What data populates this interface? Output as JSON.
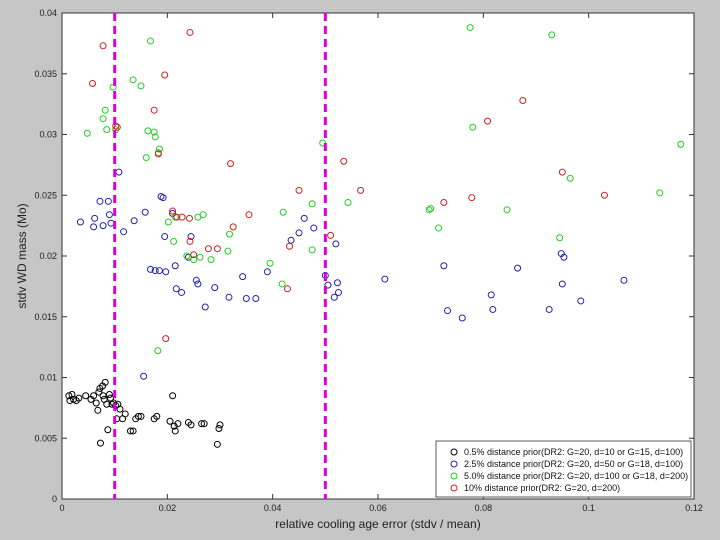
{
  "chart_data": {
    "type": "scatter",
    "xlabel": "relative cooling age error (stdv / mean)",
    "ylabel": "stdv WD mass (Mo)",
    "xlim": [
      0,
      0.12
    ],
    "ylim": [
      0,
      0.04
    ],
    "xticks": [
      "0",
      "0.02",
      "0.04",
      "0.06",
      "0.08",
      "0.1",
      "0.12"
    ],
    "yticks": [
      "0",
      "0.005",
      "0.01",
      "0.015",
      "0.02",
      "0.025",
      "0.03",
      "0.035",
      "0.04"
    ],
    "vlines": [
      0.01,
      0.05
    ],
    "vline_color": "#dd00dd",
    "legend_position": "bottom-right",
    "series": [
      {
        "name": "0.5% distance prior(DR2: G=20, d=10 or G=15, d=100)",
        "color": "#000000",
        "points": [
          [
            0.0013,
            0.0085
          ],
          [
            0.0015,
            0.0081
          ],
          [
            0.0019,
            0.0086
          ],
          [
            0.0022,
            0.0082
          ],
          [
            0.0027,
            0.0081
          ],
          [
            0.0032,
            0.0083
          ],
          [
            0.0045,
            0.0085
          ],
          [
            0.0055,
            0.0082
          ],
          [
            0.006,
            0.0085
          ],
          [
            0.0065,
            0.0079
          ],
          [
            0.0068,
            0.0073
          ],
          [
            0.007,
            0.0088
          ],
          [
            0.0072,
            0.0091
          ],
          [
            0.0073,
            0.0046
          ],
          [
            0.0077,
            0.0093
          ],
          [
            0.0078,
            0.0085
          ],
          [
            0.008,
            0.0082
          ],
          [
            0.0082,
            0.0096
          ],
          [
            0.0085,
            0.0078
          ],
          [
            0.0087,
            0.0057
          ],
          [
            0.009,
            0.0086
          ],
          [
            0.0092,
            0.0083
          ],
          [
            0.0095,
            0.0078
          ],
          [
            0.0098,
            0.0079
          ],
          [
            0.0102,
            0.0077
          ],
          [
            0.0104,
            0.0066
          ],
          [
            0.0106,
            0.0078
          ],
          [
            0.011,
            0.0074
          ],
          [
            0.0115,
            0.0066
          ],
          [
            0.012,
            0.007
          ],
          [
            0.013,
            0.0056
          ],
          [
            0.0135,
            0.0056
          ],
          [
            0.014,
            0.0066
          ],
          [
            0.0145,
            0.0068
          ],
          [
            0.015,
            0.0068
          ],
          [
            0.0175,
            0.0066
          ],
          [
            0.018,
            0.0068
          ],
          [
            0.0205,
            0.0064
          ],
          [
            0.021,
            0.0085
          ],
          [
            0.0213,
            0.006
          ],
          [
            0.0215,
            0.0056
          ],
          [
            0.022,
            0.0062
          ],
          [
            0.024,
            0.0063
          ],
          [
            0.0245,
            0.0061
          ],
          [
            0.0265,
            0.0062
          ],
          [
            0.027,
            0.0062
          ],
          [
            0.0295,
            0.0045
          ],
          [
            0.0298,
            0.0058
          ],
          [
            0.03,
            0.0061
          ]
        ]
      },
      {
        "name": "2.5% distance prior(DR2: G=20, d=50 or G=18, d=100)",
        "color": "#2222aa",
        "points": [
          [
            0.0035,
            0.0228
          ],
          [
            0.006,
            0.0224
          ],
          [
            0.0062,
            0.0231
          ],
          [
            0.0072,
            0.0245
          ],
          [
            0.0078,
            0.0225
          ],
          [
            0.0088,
            0.0245
          ],
          [
            0.009,
            0.0234
          ],
          [
            0.0093,
            0.0227
          ],
          [
            0.0108,
            0.0269
          ],
          [
            0.0117,
            0.022
          ],
          [
            0.0137,
            0.0229
          ],
          [
            0.0155,
            0.0101
          ],
          [
            0.0158,
            0.0236
          ],
          [
            0.0168,
            0.0189
          ],
          [
            0.0177,
            0.0188
          ],
          [
            0.0185,
            0.0188
          ],
          [
            0.0188,
            0.0249
          ],
          [
            0.0192,
            0.0248
          ],
          [
            0.0195,
            0.0216
          ],
          [
            0.0197,
            0.0187
          ],
          [
            0.021,
            0.0235
          ],
          [
            0.0215,
            0.0192
          ],
          [
            0.0217,
            0.0173
          ],
          [
            0.0227,
            0.017
          ],
          [
            0.024,
            0.0199
          ],
          [
            0.0245,
            0.0216
          ],
          [
            0.0255,
            0.018
          ],
          [
            0.0258,
            0.0177
          ],
          [
            0.0272,
            0.0158
          ],
          [
            0.029,
            0.0174
          ],
          [
            0.0317,
            0.0166
          ],
          [
            0.0343,
            0.0183
          ],
          [
            0.035,
            0.0165
          ],
          [
            0.0368,
            0.0165
          ],
          [
            0.039,
            0.0187
          ],
          [
            0.0435,
            0.0213
          ],
          [
            0.045,
            0.0219
          ],
          [
            0.046,
            0.0231
          ],
          [
            0.0478,
            0.0223
          ],
          [
            0.05,
            0.0184
          ],
          [
            0.0505,
            0.0176
          ],
          [
            0.0517,
            0.0166
          ],
          [
            0.052,
            0.021
          ],
          [
            0.0523,
            0.0178
          ],
          [
            0.0525,
            0.017
          ],
          [
            0.0613,
            0.0181
          ],
          [
            0.0725,
            0.0192
          ],
          [
            0.0732,
            0.0155
          ],
          [
            0.076,
            0.0149
          ],
          [
            0.0815,
            0.0168
          ],
          [
            0.0818,
            0.0156
          ],
          [
            0.0865,
            0.019
          ],
          [
            0.0925,
            0.0156
          ],
          [
            0.0948,
            0.0202
          ],
          [
            0.095,
            0.0177
          ],
          [
            0.0953,
            0.0199
          ],
          [
            0.0985,
            0.0163
          ],
          [
            0.1067,
            0.018
          ]
        ]
      },
      {
        "name": "5.0% distance prior(DR2: G=20, d=100 or G=18, d=200)",
        "color": "#22cc22",
        "points": [
          [
            0.0048,
            0.0301
          ],
          [
            0.0078,
            0.0313
          ],
          [
            0.0082,
            0.032
          ],
          [
            0.0085,
            0.0304
          ],
          [
            0.0097,
            0.0339
          ],
          [
            0.0102,
            0.0304
          ],
          [
            0.0135,
            0.0345
          ],
          [
            0.015,
            0.034
          ],
          [
            0.016,
            0.0281
          ],
          [
            0.0163,
            0.0303
          ],
          [
            0.0168,
            0.0377
          ],
          [
            0.0175,
            0.0302
          ],
          [
            0.0177,
            0.0298
          ],
          [
            0.0182,
            0.0122
          ],
          [
            0.0183,
            0.0285
          ],
          [
            0.0185,
            0.0288
          ],
          [
            0.0202,
            0.0228
          ],
          [
            0.0212,
            0.0212
          ],
          [
            0.0215,
            0.0232
          ],
          [
            0.0237,
            0.02
          ],
          [
            0.025,
            0.0197
          ],
          [
            0.0258,
            0.0232
          ],
          [
            0.0262,
            0.0199
          ],
          [
            0.0268,
            0.0234
          ],
          [
            0.0283,
            0.0197
          ],
          [
            0.0315,
            0.0204
          ],
          [
            0.0318,
            0.0218
          ],
          [
            0.0395,
            0.0194
          ],
          [
            0.0418,
            0.0177
          ],
          [
            0.042,
            0.0236
          ],
          [
            0.0475,
            0.0243
          ],
          [
            0.0495,
            0.0293
          ],
          [
            0.0475,
            0.0205
          ],
          [
            0.0543,
            0.0244
          ],
          [
            0.0697,
            0.0238
          ],
          [
            0.07,
            0.0239
          ],
          [
            0.0715,
            0.0223
          ],
          [
            0.0775,
            0.0388
          ],
          [
            0.078,
            0.0306
          ],
          [
            0.0845,
            0.0238
          ],
          [
            0.093,
            0.0382
          ],
          [
            0.0945,
            0.0215
          ],
          [
            0.0965,
            0.0264
          ],
          [
            0.1135,
            0.0252
          ],
          [
            0.1175,
            0.0292
          ]
        ]
      },
      {
        "name": "10% distance prior(DR2: G=20, d=200)",
        "color": "#cc2222",
        "points": [
          [
            0.0058,
            0.0342
          ],
          [
            0.0078,
            0.0373
          ],
          [
            0.0102,
            0.0307
          ],
          [
            0.0105,
            0.0306
          ],
          [
            0.0175,
            0.032
          ],
          [
            0.0183,
            0.0284
          ],
          [
            0.0195,
            0.0349
          ],
          [
            0.0197,
            0.0132
          ],
          [
            0.021,
            0.0237
          ],
          [
            0.0218,
            0.0232
          ],
          [
            0.0228,
            0.0232
          ],
          [
            0.0243,
            0.0384
          ],
          [
            0.0242,
            0.0231
          ],
          [
            0.025,
            0.0201
          ],
          [
            0.0243,
            0.0212
          ],
          [
            0.0278,
            0.0206
          ],
          [
            0.0295,
            0.0206
          ],
          [
            0.032,
            0.0276
          ],
          [
            0.0325,
            0.0224
          ],
          [
            0.0355,
            0.0234
          ],
          [
            0.0428,
            0.0173
          ],
          [
            0.0432,
            0.0208
          ],
          [
            0.045,
            0.0254
          ],
          [
            0.051,
            0.0217
          ],
          [
            0.0535,
            0.0278
          ],
          [
            0.0567,
            0.0254
          ],
          [
            0.0725,
            0.0244
          ],
          [
            0.0778,
            0.0248
          ],
          [
            0.0808,
            0.0311
          ],
          [
            0.0875,
            0.0328
          ],
          [
            0.095,
            0.0269
          ],
          [
            0.103,
            0.025
          ]
        ]
      }
    ]
  }
}
